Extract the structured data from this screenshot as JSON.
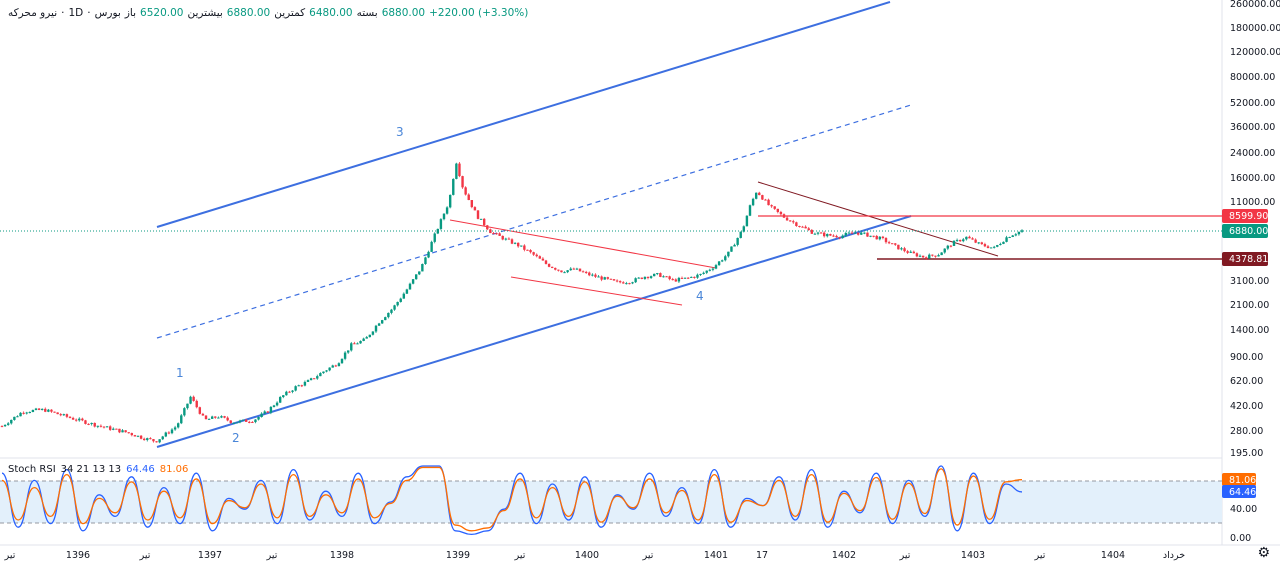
{
  "header": {
    "symbol": "نیرو محرکه",
    "interval": "1D",
    "exchange": "بورس",
    "open_label": "باز",
    "open_value": "6520.00",
    "high_label": "بیشترین",
    "high_value": "6880.00",
    "low_label": "کمترین",
    "low_value": "6480.00",
    "close_label": "بسته",
    "close_value": "6880.00",
    "change": "+220.00 (+3.30%)"
  },
  "indicator": {
    "name": "Stoch RSI",
    "params": "34 21 13 13",
    "k_value": "64.46",
    "d_value": "81.06"
  },
  "colors": {
    "up": "#089981",
    "down": "#f23645",
    "trend_blue": "#3d6fe0",
    "resistance_red": "#f23645",
    "support_darkred": "#801922",
    "stoch_k": "#2962ff",
    "stoch_d": "#ff6d00"
  },
  "chart_data": {
    "type": "candlestick",
    "title": "",
    "xlabel": "",
    "ylabel": "",
    "y_scale": "log",
    "ylim": [
      190,
      260000
    ],
    "y_ticks": [
      "260000.00",
      "180000.00",
      "120000.00",
      "80000.00",
      "52000.00",
      "36000.00",
      "24000.00",
      "16000.00",
      "11000.00",
      "3100.00",
      "2100.00",
      "1400.00",
      "900.00",
      "620.00",
      "420.00",
      "280.00",
      "195.00"
    ],
    "x_ticks": [
      "تیر",
      "1396",
      "تیر",
      "1397",
      "تیر",
      "1398",
      "1399",
      "تیر",
      "1400",
      "تیر",
      "1401",
      "17",
      "1402",
      "تیر",
      "1403",
      "تیر",
      "1404",
      "خرداد"
    ],
    "price_path": [
      [
        0,
        300
      ],
      [
        3,
        380
      ],
      [
        6,
        390
      ],
      [
        10,
        340
      ],
      [
        14,
        300
      ],
      [
        18,
        270
      ],
      [
        20,
        250
      ],
      [
        22,
        235
      ],
      [
        25,
        300
      ],
      [
        27,
        480
      ],
      [
        29,
        330
      ],
      [
        31,
        350
      ],
      [
        33,
        320
      ],
      [
        36,
        330
      ],
      [
        38,
        380
      ],
      [
        40,
        480
      ],
      [
        42,
        560
      ],
      [
        44,
        620
      ],
      [
        46,
        720
      ],
      [
        48,
        820
      ],
      [
        50,
        1100
      ],
      [
        52,
        1200
      ],
      [
        54,
        1600
      ],
      [
        56,
        2000
      ],
      [
        58,
        2700
      ],
      [
        60,
        3800
      ],
      [
        62,
        6500
      ],
      [
        64,
        11000
      ],
      [
        65,
        21000
      ],
      [
        66,
        13500
      ],
      [
        68,
        8700
      ],
      [
        70,
        6700
      ],
      [
        72,
        6000
      ],
      [
        74,
        5400
      ],
      [
        76,
        4700
      ],
      [
        78,
        4000
      ],
      [
        80,
        3600
      ],
      [
        82,
        3700
      ],
      [
        84,
        3400
      ],
      [
        86,
        3200
      ],
      [
        88,
        3000
      ],
      [
        90,
        3050
      ],
      [
        92,
        3300
      ],
      [
        94,
        3400
      ],
      [
        96,
        3100
      ],
      [
        98,
        3200
      ],
      [
        100,
        3400
      ],
      [
        102,
        3900
      ],
      [
        104,
        4800
      ],
      [
        106,
        7000
      ],
      [
        107,
        10000
      ],
      [
        108,
        13000
      ],
      [
        110,
        10000
      ],
      [
        112,
        8500
      ],
      [
        114,
        7500
      ],
      [
        116,
        6700
      ],
      [
        118,
        6400
      ],
      [
        120,
        6300
      ],
      [
        122,
        6700
      ],
      [
        124,
        6400
      ],
      [
        126,
        6000
      ],
      [
        128,
        5300
      ],
      [
        130,
        4800
      ],
      [
        132,
        4500
      ],
      [
        134,
        4700
      ],
      [
        136,
        5600
      ],
      [
        138,
        6200
      ],
      [
        140,
        5500
      ],
      [
        142,
        5200
      ],
      [
        144,
        6300
      ],
      [
        146,
        6880
      ]
    ],
    "series": [
      {
        "name": "",
        "type": "stoch_k",
        "values": [
          90,
          15,
          80,
          20,
          95,
          10,
          60,
          30,
          85,
          15,
          70,
          20,
          90,
          10,
          55,
          40,
          80,
          20,
          95,
          25,
          65,
          30,
          90,
          20,
          50,
          85,
          100,
          100,
          10,
          5,
          10,
          40,
          90,
          20,
          75,
          25,
          85,
          15,
          60,
          40,
          90,
          30,
          70,
          20,
          95,
          15,
          55,
          45,
          85,
          25,
          95,
          15,
          65,
          35,
          90,
          20,
          80,
          30,
          100,
          10,
          90,
          20,
          75,
          64
        ]
      },
      {
        "name": "",
        "type": "stoch_d",
        "values": [
          80,
          25,
          70,
          30,
          88,
          20,
          55,
          35,
          78,
          25,
          65,
          28,
          82,
          20,
          52,
          42,
          75,
          28,
          88,
          30,
          60,
          35,
          82,
          28,
          48,
          80,
          98,
          98,
          18,
          10,
          14,
          38,
          82,
          28,
          70,
          30,
          78,
          22,
          58,
          42,
          82,
          35,
          66,
          25,
          88,
          22,
          52,
          45,
          80,
          30,
          88,
          22,
          62,
          38,
          84,
          26,
          76,
          34,
          96,
          18,
          86,
          26,
          78,
          81
        ]
      }
    ],
    "stoch_ticks": [
      "81.06",
      "64.46",
      "40.00",
      "0.00"
    ],
    "stoch_bands": [
      80,
      20
    ],
    "price_labels": {
      "resistance": "8599.90",
      "last": "6880.00",
      "support": "4378.81"
    },
    "wave_labels": [
      "1",
      "2",
      "3",
      "4"
    ]
  }
}
